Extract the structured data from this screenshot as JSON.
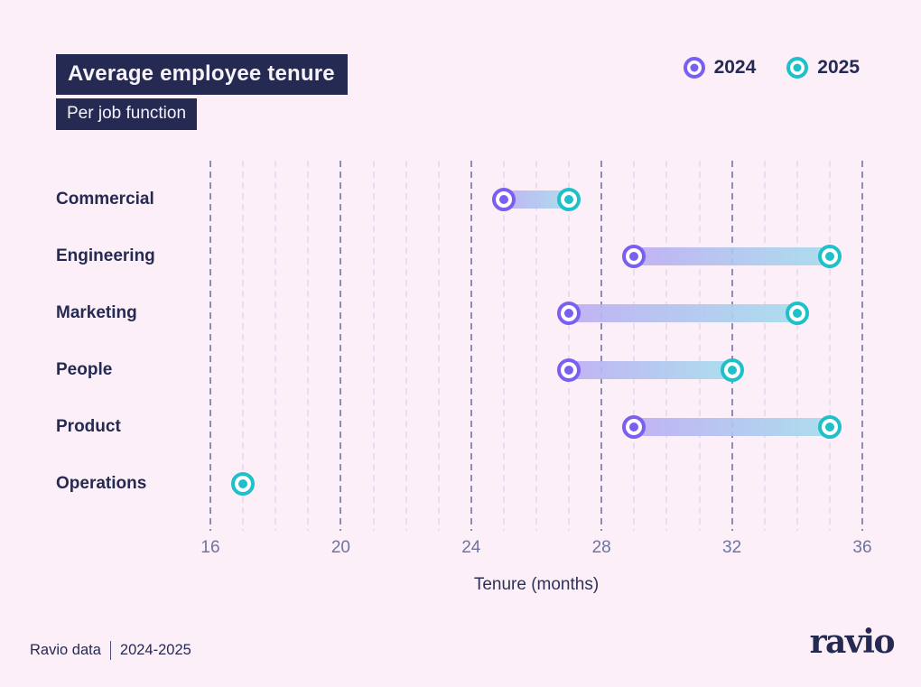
{
  "header": {
    "title": "Average employee tenure",
    "subtitle": "Per job function"
  },
  "chart_data": {
    "type": "dumbbell",
    "categories": [
      "Commercial",
      "Engineering",
      "Marketing",
      "People",
      "Product",
      "Operations"
    ],
    "series": [
      {
        "name": "2024",
        "color": "#7b5ff0",
        "values": [
          25,
          29,
          27,
          27,
          29,
          null
        ]
      },
      {
        "name": "2025",
        "color": "#1fc0c9",
        "values": [
          27,
          35,
          34,
          32,
          35,
          17
        ]
      }
    ],
    "xlabel": "Tenure (months)",
    "xlim": [
      16,
      36
    ],
    "xticks": [
      16,
      20,
      24,
      28,
      32,
      36
    ],
    "minor_grid_every": 1,
    "grid": "vertical-dashed",
    "legend_position": "top-right",
    "bar_gradient": [
      "#bcaef3",
      "#a6dcec"
    ],
    "colors": {
      "background": "#fdeff8",
      "navy": "#242a52",
      "major_grid": "#8d8db2",
      "minor_grid": "#e7def0",
      "tick_label": "#6b74a3"
    }
  },
  "footer": {
    "source": "Ravio data",
    "range": "2024-2025",
    "logo": "ravio"
  }
}
